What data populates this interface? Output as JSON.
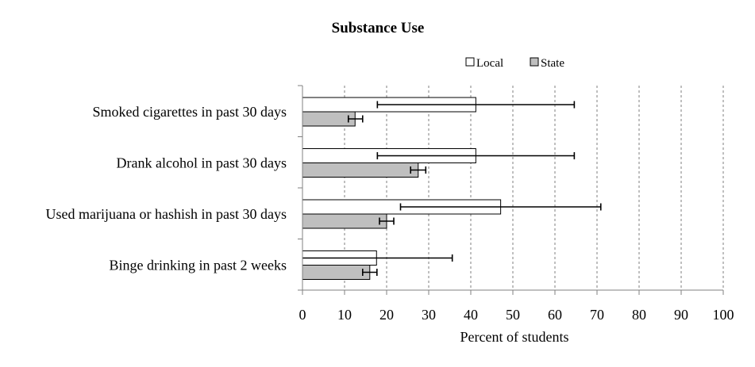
{
  "chart_data": {
    "type": "bar",
    "orientation": "horizontal",
    "title": "Substance Use",
    "xlabel": "Percent of students",
    "ylabel": "",
    "xlim": [
      0,
      100
    ],
    "xticks": [
      0,
      10,
      20,
      30,
      40,
      50,
      60,
      70,
      80,
      90,
      100
    ],
    "grid": "vertical dashed",
    "legend_position": "top-right",
    "categories": [
      "Smoked cigarettes in past 30 days",
      "Drank alcohol in past 30 days",
      "Used marijuana or hashish in past 30 days",
      "Binge drinking in past 2 weeks"
    ],
    "series": [
      {
        "name": "Local",
        "color": "#ffffff",
        "values": [
          41.2,
          41.2,
          47.1,
          17.6
        ],
        "error_low": [
          17.8,
          17.8,
          23.3,
          0
        ],
        "error_high": [
          64.6,
          64.6,
          70.9,
          35.6
        ]
      },
      {
        "name": "State",
        "color": "#bfbfbf",
        "values": [
          12.5,
          27.5,
          20.0,
          16.0
        ],
        "error_low": [
          10.9,
          25.7,
          18.3,
          14.3
        ],
        "error_high": [
          14.3,
          29.3,
          21.7,
          17.7
        ]
      }
    ]
  }
}
